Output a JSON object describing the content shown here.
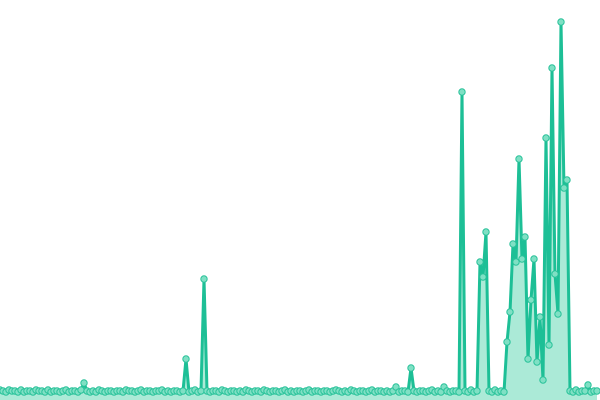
{
  "chart_data": {
    "type": "area",
    "title": "",
    "xlabel": "",
    "ylabel": "",
    "axes_visible": false,
    "grid": false,
    "legend": "none",
    "ylim": [
      0,
      371
    ],
    "colors": {
      "line": "#1dbf96",
      "area": "#8fe3c9",
      "marker_fill": "#7fe0c4",
      "marker_stroke": "#29c29a"
    },
    "values": [
      3,
      2,
      1,
      3,
      2,
      2,
      1,
      3,
      1,
      2,
      2,
      1,
      3,
      2,
      2,
      1,
      3,
      1,
      2,
      2,
      1,
      2,
      3,
      1,
      2,
      2,
      1,
      3,
      10,
      2,
      1,
      2,
      1,
      3,
      2,
      1,
      2,
      2,
      1,
      2,
      2,
      1,
      3,
      2,
      2,
      1,
      2,
      3,
      1,
      2,
      2,
      1,
      2,
      2,
      3,
      1,
      2,
      1,
      2,
      2,
      1,
      2,
      34,
      1,
      2,
      3,
      1,
      2,
      114,
      2,
      1,
      2,
      2,
      1,
      3,
      2,
      1,
      2,
      2,
      1,
      2,
      1,
      3,
      2,
      1,
      2,
      2,
      1,
      3,
      2,
      1,
      2,
      2,
      1,
      2,
      3,
      1,
      2,
      1,
      2,
      2,
      1,
      2,
      3,
      1,
      2,
      2,
      1,
      2,
      2,
      1,
      2,
      3,
      2,
      1,
      2,
      1,
      3,
      2,
      1,
      2,
      2,
      1,
      2,
      3,
      1,
      2,
      2,
      1,
      2,
      1,
      2,
      6,
      1,
      2,
      2,
      1,
      25,
      2,
      1,
      2,
      2,
      1,
      2,
      3,
      1,
      2,
      1,
      6,
      2,
      1,
      2,
      2,
      1,
      301,
      2,
      1,
      3,
      1,
      2,
      131,
      116,
      161,
      2,
      1,
      3,
      1,
      2,
      1,
      51,
      81,
      149,
      131,
      234,
      134,
      156,
      34,
      93,
      134,
      31,
      76,
      13,
      255,
      48,
      325,
      119,
      79,
      371,
      205,
      213,
      2,
      1,
      3,
      1,
      2,
      2,
      8,
      1,
      2,
      2
    ]
  }
}
